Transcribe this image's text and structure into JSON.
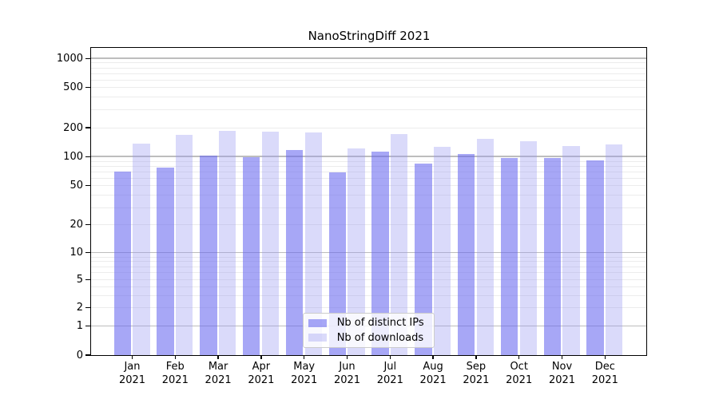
{
  "chart_data": {
    "type": "bar",
    "title": "NanoStringDiff 2021",
    "categories": [
      "Jan 2021",
      "Feb 2021",
      "Mar 2021",
      "Apr 2021",
      "May 2021",
      "Jun 2021",
      "Jul 2021",
      "Aug 2021",
      "Sep 2021",
      "Oct 2021",
      "Nov 2021",
      "Dec 2021"
    ],
    "series": [
      {
        "name": "Nb of distinct IPs",
        "color": "rgba(100,100,240,0.57)",
        "values": [
          69,
          76,
          101,
          98,
          117,
          68,
          112,
          84,
          106,
          97,
          96,
          91
        ]
      },
      {
        "name": "Nb of downloads",
        "color": "rgba(150,150,240,0.35)",
        "values": [
          136,
          168,
          184,
          179,
          178,
          120,
          170,
          126,
          152,
          143,
          129,
          134
        ]
      }
    ],
    "y_ticks": [
      0,
      1,
      2,
      5,
      10,
      20,
      50,
      100,
      200,
      500,
      1000
    ],
    "y_scale": "symlog",
    "ylim": [
      0,
      1300
    ],
    "grid": "major + minor horizontal gridlines",
    "major_grid_values": [
      1,
      10,
      100,
      1000
    ],
    "legend_position": "lower center",
    "colors": {
      "major_grid": "#bdbdbd",
      "minor_grid": "#ececec",
      "axis": "#000000",
      "background": "#ffffff"
    }
  }
}
